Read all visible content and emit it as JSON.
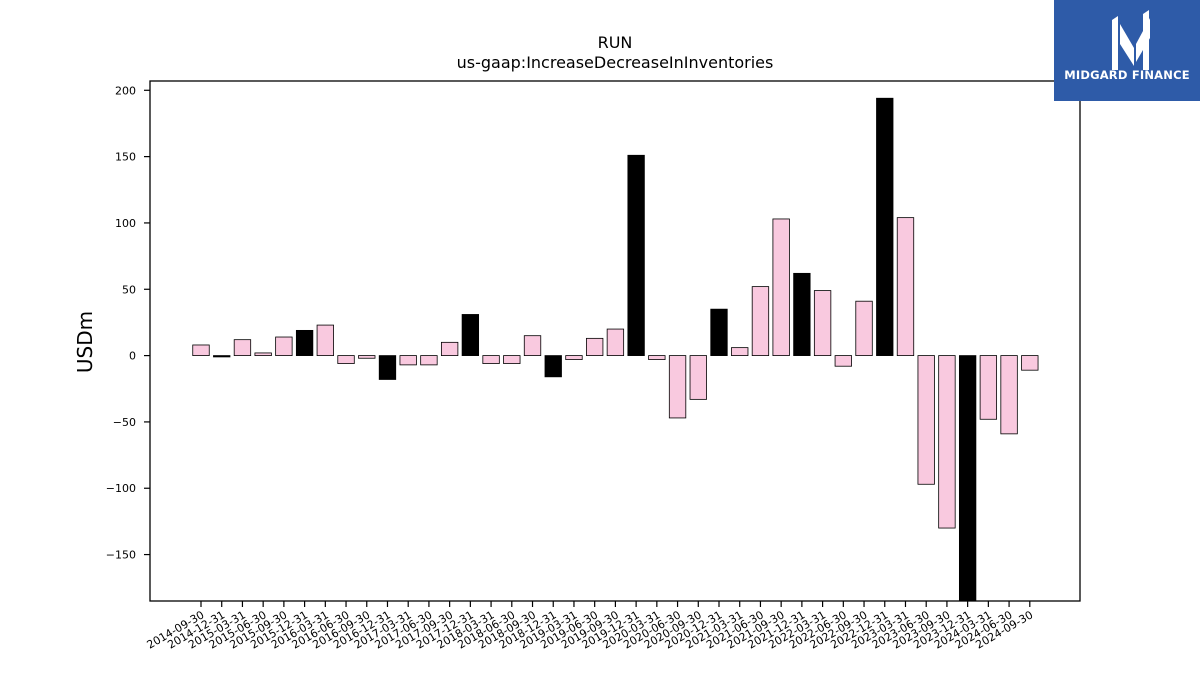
{
  "brand": {
    "name": "MIDGARD FINANCE",
    "logo_icon": "midgard-m-icon",
    "background": "#2e5ba8"
  },
  "chart_data": {
    "type": "bar",
    "title": "RUN",
    "subtitle": "us-gaap:IncreaseDecreaseInInventories",
    "xlabel": "",
    "ylabel": "USDm",
    "ylim": [
      -185,
      207
    ],
    "yticks": [
      -150,
      -100,
      -50,
      0,
      50,
      100,
      150,
      200
    ],
    "ytick_labels": [
      "−150",
      "−100",
      "−50",
      "0",
      "50",
      "100",
      "150",
      "200"
    ],
    "grid": false,
    "colors": {
      "annual": "#000000",
      "quarterly": "#f9c9df",
      "edge": "#000000"
    },
    "categories": [
      "2014-09-30",
      "2014-12-31",
      "2015-03-31",
      "2015-06-30",
      "2015-09-30",
      "2015-12-31",
      "2016-03-31",
      "2016-06-30",
      "2016-09-30",
      "2016-12-31",
      "2017-03-31",
      "2017-06-30",
      "2017-09-30",
      "2017-12-31",
      "2018-03-31",
      "2018-06-30",
      "2018-09-30",
      "2018-12-31",
      "2019-03-31",
      "2019-06-30",
      "2019-09-30",
      "2019-12-31",
      "2020-03-31",
      "2020-06-30",
      "2020-09-30",
      "2020-12-31",
      "2021-03-31",
      "2021-06-30",
      "2021-09-30",
      "2021-12-31",
      "2022-03-31",
      "2022-06-30",
      "2022-09-30",
      "2022-12-31",
      "2023-03-31",
      "2023-06-30",
      "2023-09-30",
      "2023-12-31",
      "2024-03-31",
      "2024-06-30",
      "2024-09-30"
    ],
    "values": [
      8,
      -1,
      12,
      2,
      14,
      19,
      23,
      -6,
      -2,
      -18,
      -7,
      -7,
      10,
      31,
      -6,
      -6,
      15,
      -16,
      -3,
      13,
      20,
      151,
      -3,
      -47,
      -33,
      35,
      6,
      52,
      103,
      62,
      49,
      -8,
      41,
      194,
      104,
      -97,
      -130,
      -190,
      -48,
      -59,
      -11
    ],
    "annual": [
      false,
      true,
      false,
      false,
      false,
      true,
      false,
      false,
      false,
      true,
      false,
      false,
      false,
      true,
      false,
      false,
      false,
      true,
      false,
      false,
      false,
      true,
      false,
      false,
      false,
      true,
      false,
      false,
      false,
      true,
      false,
      false,
      false,
      true,
      false,
      false,
      false,
      true,
      false,
      false,
      false
    ]
  }
}
